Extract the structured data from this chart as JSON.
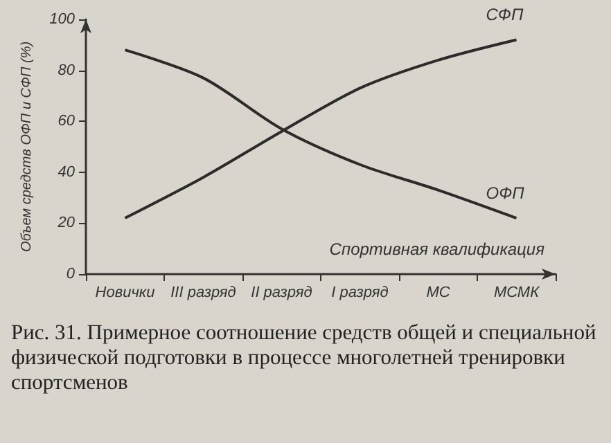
{
  "chart_data": {
    "type": "line",
    "xlabel": "Спортивная квалификация",
    "ylabel": "Объем средств ОФП и СФП (%)",
    "categories": [
      "Новички",
      "III разряд",
      "II разряд",
      "I разряд",
      "МС",
      "МСМК"
    ],
    "series": [
      {
        "name": "СФП",
        "color": "#2b2b2b",
        "values": [
          22,
          38,
          56,
          73,
          84,
          92
        ]
      },
      {
        "name": "ОФП",
        "color": "#2b2b2b",
        "values": [
          88,
          77,
          57,
          43,
          33,
          22
        ]
      }
    ],
    "ylim": [
      0,
      100
    ],
    "yticks": [
      0,
      20,
      40,
      60,
      80,
      100
    ],
    "grid": false,
    "legend": false,
    "line_style": "solid",
    "annotations": [
      "Рис. 31. Примерное соотношение средств общей и специальной физической подготовки в процессе многолетней тренировки спортсменов"
    ]
  }
}
